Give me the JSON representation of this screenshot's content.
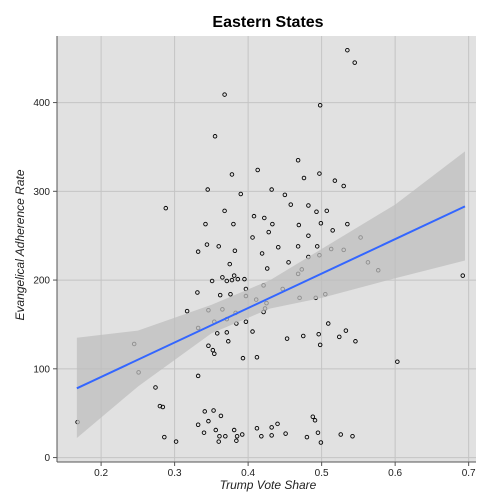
{
  "chart_data": {
    "type": "scatter",
    "title": "Eastern States",
    "xlabel": "Trump Vote Share",
    "ylabel": "Evangelical Adherence Rate",
    "xlim": [
      0.14,
      0.71
    ],
    "ylim": [
      -5,
      475
    ],
    "xticks": [
      0.2,
      0.3,
      0.4,
      0.5,
      0.6,
      0.7
    ],
    "yticks": [
      0,
      100,
      200,
      300,
      400
    ],
    "grid": true,
    "colors": {
      "panel": "#e1e1e1",
      "grid": "#c4c4c4",
      "ribbon": "#bdbdbd",
      "line": "#3366ff",
      "point": "#000000"
    },
    "trend": {
      "x0": 0.167,
      "y0": 78,
      "x1": 0.695,
      "y1": 283
    },
    "ribbon": {
      "x": [
        0.167,
        0.25,
        0.35,
        0.43,
        0.5,
        0.6,
        0.695
      ],
      "upper": [
        135,
        143,
        172,
        200,
        235,
        285,
        345
      ],
      "lower": [
        22,
        80,
        140,
        168,
        180,
        202,
        222
      ]
    },
    "points": [
      [
        0.535,
        459
      ],
      [
        0.545,
        445
      ],
      [
        0.368,
        409
      ],
      [
        0.498,
        397
      ],
      [
        0.355,
        362
      ],
      [
        0.468,
        335
      ],
      [
        0.413,
        324
      ],
      [
        0.378,
        319
      ],
      [
        0.497,
        320
      ],
      [
        0.476,
        315
      ],
      [
        0.518,
        312
      ],
      [
        0.53,
        306
      ],
      [
        0.345,
        302
      ],
      [
        0.432,
        302
      ],
      [
        0.45,
        296
      ],
      [
        0.39,
        297
      ],
      [
        0.288,
        281
      ],
      [
        0.458,
        285
      ],
      [
        0.482,
        284
      ],
      [
        0.368,
        278
      ],
      [
        0.408,
        272
      ],
      [
        0.422,
        270
      ],
      [
        0.493,
        277
      ],
      [
        0.507,
        278
      ],
      [
        0.433,
        263
      ],
      [
        0.38,
        263
      ],
      [
        0.342,
        263
      ],
      [
        0.469,
        262
      ],
      [
        0.499,
        264
      ],
      [
        0.515,
        256
      ],
      [
        0.535,
        263
      ],
      [
        0.428,
        254
      ],
      [
        0.406,
        248
      ],
      [
        0.482,
        250
      ],
      [
        0.553,
        248
      ],
      [
        0.36,
        238
      ],
      [
        0.344,
        240
      ],
      [
        0.441,
        237
      ],
      [
        0.468,
        238
      ],
      [
        0.494,
        238
      ],
      [
        0.513,
        235
      ],
      [
        0.53,
        234
      ],
      [
        0.332,
        232
      ],
      [
        0.382,
        233
      ],
      [
        0.419,
        230
      ],
      [
        0.482,
        226
      ],
      [
        0.497,
        228
      ],
      [
        0.455,
        220
      ],
      [
        0.563,
        220
      ],
      [
        0.375,
        218
      ],
      [
        0.473,
        212
      ],
      [
        0.426,
        213
      ],
      [
        0.577,
        211
      ],
      [
        0.468,
        207
      ],
      [
        0.381,
        205
      ],
      [
        0.395,
        201
      ],
      [
        0.365,
        203
      ],
      [
        0.371,
        199
      ],
      [
        0.378,
        200
      ],
      [
        0.386,
        201
      ],
      [
        0.692,
        205
      ],
      [
        0.351,
        199
      ],
      [
        0.421,
        194
      ],
      [
        0.397,
        190
      ],
      [
        0.447,
        190
      ],
      [
        0.331,
        186
      ],
      [
        0.376,
        184
      ],
      [
        0.362,
        183
      ],
      [
        0.397,
        182
      ],
      [
        0.505,
        184
      ],
      [
        0.47,
        180
      ],
      [
        0.492,
        180
      ],
      [
        0.411,
        178
      ],
      [
        0.425,
        174
      ],
      [
        0.365,
        167
      ],
      [
        0.317,
        165
      ],
      [
        0.346,
        166
      ],
      [
        0.383,
        163
      ],
      [
        0.423,
        168
      ],
      [
        0.421,
        164
      ],
      [
        0.371,
        156
      ],
      [
        0.384,
        151
      ],
      [
        0.397,
        153
      ],
      [
        0.354,
        153
      ],
      [
        0.509,
        151
      ],
      [
        0.332,
        146
      ],
      [
        0.406,
        142
      ],
      [
        0.371,
        141
      ],
      [
        0.358,
        140
      ],
      [
        0.524,
        136
      ],
      [
        0.475,
        137
      ],
      [
        0.496,
        139
      ],
      [
        0.533,
        143
      ],
      [
        0.245,
        128
      ],
      [
        0.346,
        126
      ],
      [
        0.352,
        121
      ],
      [
        0.498,
        127
      ],
      [
        0.546,
        131
      ],
      [
        0.373,
        131
      ],
      [
        0.453,
        134
      ],
      [
        0.354,
        117
      ],
      [
        0.412,
        113
      ],
      [
        0.393,
        112
      ],
      [
        0.603,
        108
      ],
      [
        0.251,
        96
      ],
      [
        0.332,
        92
      ],
      [
        0.274,
        79
      ],
      [
        0.28,
        58
      ],
      [
        0.284,
        57
      ],
      [
        0.168,
        40
      ],
      [
        0.341,
        52
      ],
      [
        0.353,
        53
      ],
      [
        0.363,
        47
      ],
      [
        0.346,
        41
      ],
      [
        0.332,
        37
      ],
      [
        0.356,
        31
      ],
      [
        0.381,
        31
      ],
      [
        0.412,
        33
      ],
      [
        0.432,
        34
      ],
      [
        0.44,
        38
      ],
      [
        0.488,
        46
      ],
      [
        0.491,
        42
      ],
      [
        0.48,
        23
      ],
      [
        0.361,
        24
      ],
      [
        0.369,
        24
      ],
      [
        0.385,
        24
      ],
      [
        0.418,
        24
      ],
      [
        0.451,
        27
      ],
      [
        0.495,
        28
      ],
      [
        0.526,
        26
      ],
      [
        0.542,
        24
      ],
      [
        0.286,
        23
      ],
      [
        0.302,
        18
      ],
      [
        0.34,
        28
      ],
      [
        0.392,
        26
      ],
      [
        0.36,
        18
      ],
      [
        0.384,
        19
      ],
      [
        0.432,
        25
      ],
      [
        0.499,
        17
      ]
    ]
  }
}
